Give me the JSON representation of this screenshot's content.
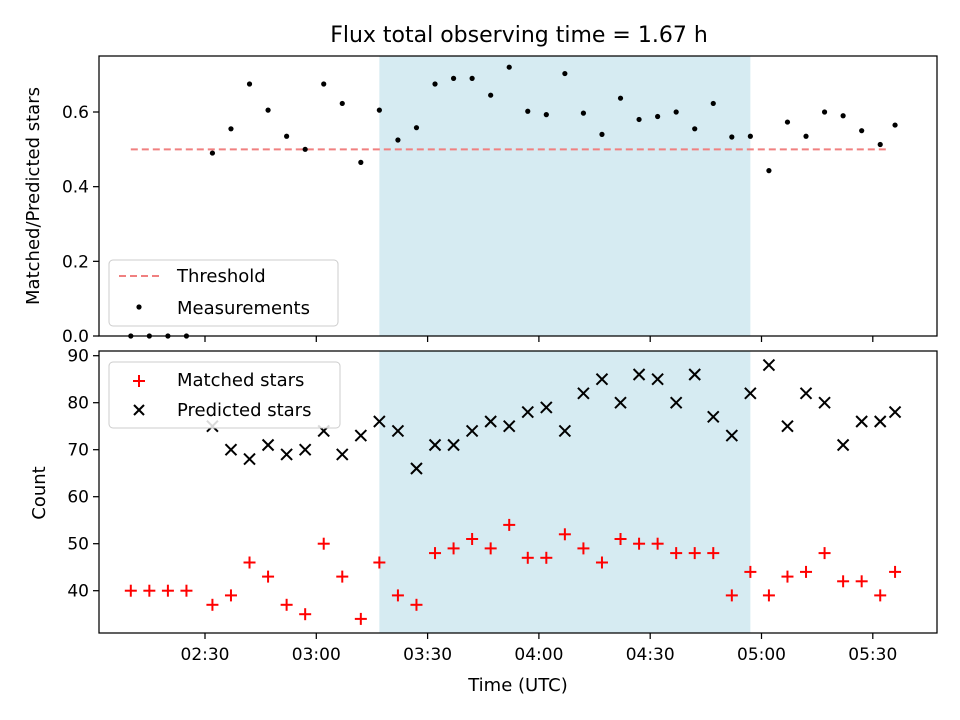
{
  "figure": {
    "title": "Flux total observing time = 1.67 h"
  },
  "chart_data": [
    {
      "type": "scatter",
      "panel": "top",
      "ylabel": "Matched/Predicted stars",
      "xlabel": "",
      "x_unit": "time of day (HH:MM UTC)",
      "ylim": [
        0,
        0.75
      ],
      "yticks": [
        "0.0",
        "0.2",
        "0.4",
        "0.6"
      ],
      "xticks": [
        "02:30",
        "03:00",
        "03:30",
        "04:00",
        "04:30",
        "05:00",
        "05:30"
      ],
      "x_tick_labels_shown": false,
      "grid": false,
      "legend_position": "lower-left",
      "shaded_interval": {
        "start": "03:17",
        "end": "04:57",
        "color": "#add8e6"
      },
      "threshold": {
        "name": "Threshold",
        "value": 0.5,
        "x_start": "02:10",
        "x_end": "05:34",
        "color": "#f08080",
        "style": "dashed"
      },
      "series": [
        {
          "name": "Measurements",
          "marker": "dot",
          "color": "#000000",
          "x": [
            "02:10",
            "02:15",
            "02:20",
            "02:25",
            "02:32",
            "02:37",
            "02:42",
            "02:47",
            "02:52",
            "02:57",
            "03:02",
            "03:07",
            "03:12",
            "03:17",
            "03:22",
            "03:27",
            "03:32",
            "03:37",
            "03:42",
            "03:47",
            "03:52",
            "03:57",
            "04:02",
            "04:07",
            "04:12",
            "04:17",
            "04:22",
            "04:27",
            "04:32",
            "04:37",
            "04:42",
            "04:47",
            "04:52",
            "04:57",
            "05:02",
            "05:07",
            "05:12",
            "05:17",
            "05:22",
            "05:27",
            "05:32",
            "05:36"
          ],
          "y": [
            0.0,
            0.0,
            0.0,
            0.0,
            0.49,
            0.555,
            0.675,
            0.605,
            0.535,
            0.5,
            0.675,
            0.623,
            0.465,
            0.605,
            0.525,
            0.558,
            0.675,
            0.69,
            0.69,
            0.645,
            0.72,
            0.602,
            0.593,
            0.703,
            0.597,
            0.54,
            0.637,
            0.58,
            0.588,
            0.6,
            0.555,
            0.623,
            0.533,
            0.535,
            0.443,
            0.573,
            0.535,
            0.6,
            0.59,
            0.55,
            0.513,
            0.565
          ]
        }
      ]
    },
    {
      "type": "scatter",
      "panel": "bottom",
      "xlabel": "Time (UTC)",
      "ylabel": "Count",
      "ylim": [
        31,
        91
      ],
      "yticks": [
        "40",
        "50",
        "60",
        "70",
        "80",
        "90"
      ],
      "xticks": [
        "02:30",
        "03:00",
        "03:30",
        "04:00",
        "04:30",
        "05:00",
        "05:30"
      ],
      "grid": false,
      "legend_position": "upper-left",
      "shaded_interval": {
        "start": "03:17",
        "end": "04:57",
        "color": "#add8e6"
      },
      "series": [
        {
          "name": "Matched stars",
          "marker": "plus",
          "color": "#ff0000",
          "x": [
            "02:10",
            "02:15",
            "02:20",
            "02:25",
            "02:32",
            "02:37",
            "02:42",
            "02:47",
            "02:52",
            "02:57",
            "03:02",
            "03:07",
            "03:12",
            "03:17",
            "03:22",
            "03:27",
            "03:32",
            "03:37",
            "03:42",
            "03:47",
            "03:52",
            "03:57",
            "04:02",
            "04:07",
            "04:12",
            "04:17",
            "04:22",
            "04:27",
            "04:32",
            "04:37",
            "04:42",
            "04:47",
            "04:52",
            "04:57",
            "05:02",
            "05:07",
            "05:12",
            "05:17",
            "05:22",
            "05:27",
            "05:32",
            "05:36"
          ],
          "y": [
            40,
            40,
            40,
            40,
            37,
            39,
            46,
            43,
            37,
            35,
            50,
            43,
            34,
            46,
            39,
            37,
            48,
            49,
            51,
            49,
            54,
            47,
            47,
            52,
            49,
            46,
            51,
            50,
            50,
            48,
            48,
            48,
            39,
            44,
            39,
            43,
            44,
            48,
            42,
            42,
            39,
            44
          ]
        },
        {
          "name": "Predicted stars",
          "marker": "x",
          "color": "#000000",
          "x": [
            "02:32",
            "02:37",
            "02:42",
            "02:47",
            "02:52",
            "02:57",
            "03:02",
            "03:07",
            "03:12",
            "03:17",
            "03:22",
            "03:27",
            "03:32",
            "03:37",
            "03:42",
            "03:47",
            "03:52",
            "03:57",
            "04:02",
            "04:07",
            "04:12",
            "04:17",
            "04:22",
            "04:27",
            "04:32",
            "04:37",
            "04:42",
            "04:47",
            "04:52",
            "04:57",
            "05:02",
            "05:07",
            "05:12",
            "05:17",
            "05:22",
            "05:27",
            "05:32",
            "05:36"
          ],
          "y": [
            75,
            70,
            68,
            71,
            69,
            70,
            74,
            69,
            73,
            76,
            74,
            66,
            71,
            71,
            74,
            76,
            75,
            78,
            79,
            74,
            82,
            85,
            80,
            86,
            85,
            80,
            86,
            77,
            73,
            82,
            88,
            75,
            82,
            80,
            71,
            76,
            76,
            78
          ]
        }
      ]
    }
  ]
}
